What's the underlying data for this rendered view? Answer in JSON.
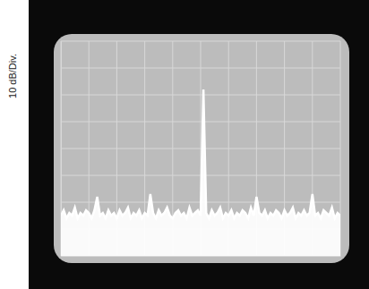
{
  "chart_data": {
    "type": "area",
    "ylabel": "10 dB/Div.",
    "x": [
      0,
      0.1,
      0.2,
      0.3,
      0.4,
      0.5,
      0.6,
      0.7,
      0.8,
      0.9,
      1,
      1.1,
      1.2,
      1.3,
      1.4,
      1.5,
      1.6,
      1.7,
      1.8,
      1.9,
      2,
      2.1,
      2.2,
      2.3,
      2.4,
      2.5,
      2.6,
      2.7,
      2.8,
      2.9,
      3,
      3.1,
      3.2,
      3.3,
      3.4,
      3.5,
      3.6,
      3.7,
      3.8,
      3.9,
      4,
      4.1,
      4.2,
      4.3,
      4.4,
      4.5,
      4.6,
      4.7,
      4.8,
      4.9,
      5,
      5.1,
      5.2,
      5.3,
      5.4,
      5.5,
      5.6,
      5.7,
      5.8,
      5.9,
      6,
      6.1,
      6.2,
      6.3,
      6.4,
      6.5,
      6.6,
      6.7,
      6.8,
      6.9,
      7,
      7.1,
      7.2,
      7.3,
      7.4,
      7.5,
      7.6,
      7.7,
      7.8,
      7.9,
      8,
      8.1,
      8.2,
      8.3,
      8.4,
      8.5,
      8.6,
      8.7,
      8.8,
      8.9,
      9,
      9.1,
      9.2,
      9.3,
      9.4,
      9.5,
      9.6,
      9.7,
      9.8,
      9.9,
      10
    ],
    "values": [
      15,
      17,
      14,
      16,
      15,
      18,
      14,
      16,
      15,
      17,
      16,
      14,
      17,
      22,
      15,
      16,
      14,
      17,
      15,
      16,
      14,
      17,
      15,
      16,
      18,
      14,
      16,
      15,
      17,
      14,
      16,
      15,
      23,
      16,
      14,
      17,
      15,
      16,
      18,
      15,
      14,
      16,
      17,
      15,
      16,
      14,
      18,
      15,
      16,
      17,
      15,
      62,
      16,
      14,
      17,
      15,
      16,
      18,
      14,
      16,
      15,
      17,
      14,
      16,
      15,
      17,
      16,
      14,
      18,
      15,
      22,
      16,
      15,
      17,
      14,
      16,
      15,
      17,
      16,
      14,
      17,
      15,
      16,
      18,
      14,
      16,
      15,
      17,
      15,
      16,
      23,
      15,
      16,
      14,
      17,
      16,
      15,
      18,
      14,
      16,
      15
    ],
    "color": "#ffffff",
    "xlim": [
      0,
      10
    ],
    "ylim": [
      0,
      80
    ],
    "xticks": [
      0,
      1,
      2,
      3,
      4,
      5,
      6,
      7,
      8,
      9,
      10
    ],
    "yticks": [
      0,
      10,
      20,
      30,
      40,
      50,
      60,
      70,
      80
    ],
    "grid": true,
    "tick_labels": false
  }
}
